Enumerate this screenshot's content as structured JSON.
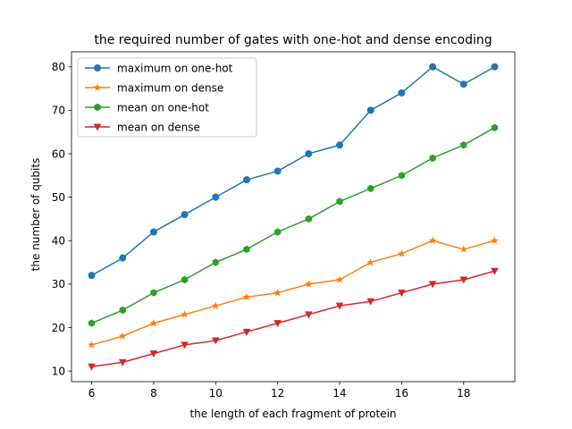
{
  "chart_data": {
    "type": "line",
    "title": "the required number of gates with one-hot and dense encoding",
    "xlabel": "the length of each fragment of protein",
    "ylabel": "the number of qubits",
    "xlim": [
      5.35,
      19.65
    ],
    "ylim": [
      7.55,
      83.45
    ],
    "x_ticks": [
      6,
      8,
      10,
      12,
      14,
      16,
      18
    ],
    "y_ticks": [
      10,
      20,
      30,
      40,
      50,
      60,
      70,
      80
    ],
    "grid": false,
    "legend_position": "upper-left",
    "x": [
      6,
      7,
      8,
      9,
      10,
      11,
      12,
      13,
      14,
      15,
      16,
      17,
      18,
      19
    ],
    "series": [
      {
        "name": "maximum on one-hot",
        "color": "#1f77b4",
        "marker": "circle",
        "values": [
          32,
          36,
          42,
          46,
          50,
          54,
          56,
          60,
          62,
          70,
          74,
          80,
          76,
          80
        ]
      },
      {
        "name": "maximum on dense",
        "color": "#ff7f0e",
        "marker": "star",
        "values": [
          16,
          18,
          21,
          23,
          25,
          27,
          28,
          30,
          31,
          35,
          37,
          40,
          38,
          40
        ]
      },
      {
        "name": "mean on one-hot",
        "color": "#2ca02c",
        "marker": "hexagon",
        "values": [
          21,
          24,
          28,
          31,
          35,
          38,
          42,
          45,
          49,
          52,
          55,
          59,
          62,
          66
        ]
      },
      {
        "name": "mean on dense",
        "color": "#d62728",
        "marker": "triangle-down",
        "values": [
          11,
          12,
          14,
          16,
          17,
          19,
          21,
          23,
          25,
          26,
          28,
          30,
          31,
          33
        ]
      }
    ]
  }
}
